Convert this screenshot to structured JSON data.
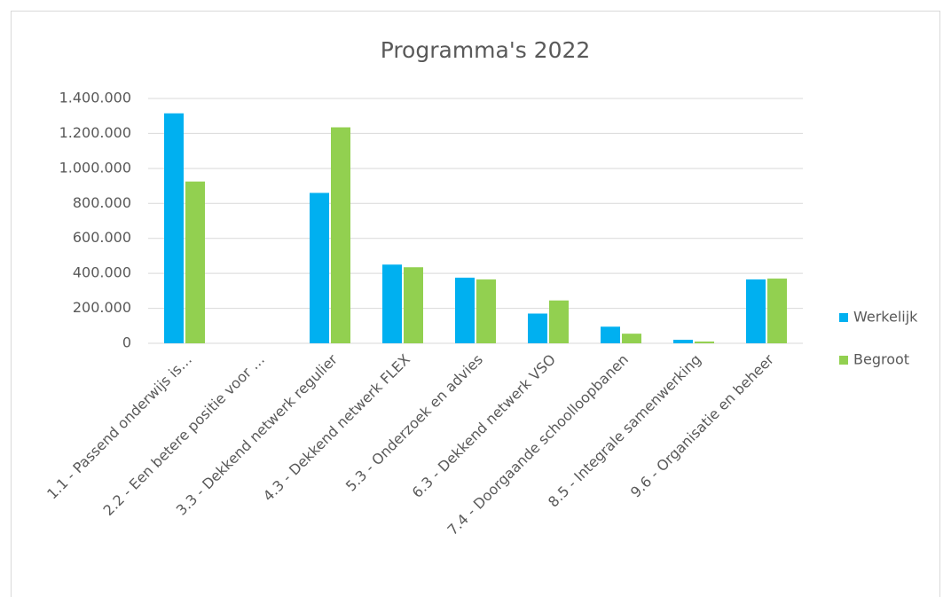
{
  "chart_data": {
    "type": "bar",
    "title": "Programma's 2022",
    "categories": [
      "1.1 - Passend onderwijs is…",
      "2.2 - Een betere positie voor …",
      "3.3 - Dekkend netwerk regulier",
      "4.3 - Dekkend netwerk FLEX",
      "5.3 - Onderzoek en advies",
      "6.3 - Dekkend netwerk VSO",
      "7.4 - Doorgaande schoolloopbanen",
      "8.5 - Integrale samenwerking",
      "9.6 - Organisatie en beheer"
    ],
    "series": [
      {
        "name": "Werkelijk",
        "color": "#00b0f0",
        "values": [
          1315000,
          0,
          860000,
          450000,
          375000,
          170000,
          95000,
          20000,
          365000
        ]
      },
      {
        "name": "Begroot",
        "color": "#92d050",
        "values": [
          925000,
          0,
          1235000,
          435000,
          365000,
          245000,
          55000,
          10000,
          370000
        ]
      }
    ],
    "ylim": [
      0,
      1400000
    ],
    "yticks": [
      0,
      {
        "value": 200000,
        "label": "200.000"
      },
      {
        "value": 400000,
        "label": "400.000"
      },
      {
        "value": 600000,
        "label": "600.000"
      },
      {
        "value": 800000,
        "label": "800.000"
      },
      {
        "value": 1000000,
        "label": "1.000.000"
      },
      {
        "value": 1200000,
        "label": "1.200.000"
      },
      {
        "value": 1400000,
        "label": "1.400.000"
      }
    ],
    "grid": true,
    "legend": "right"
  }
}
